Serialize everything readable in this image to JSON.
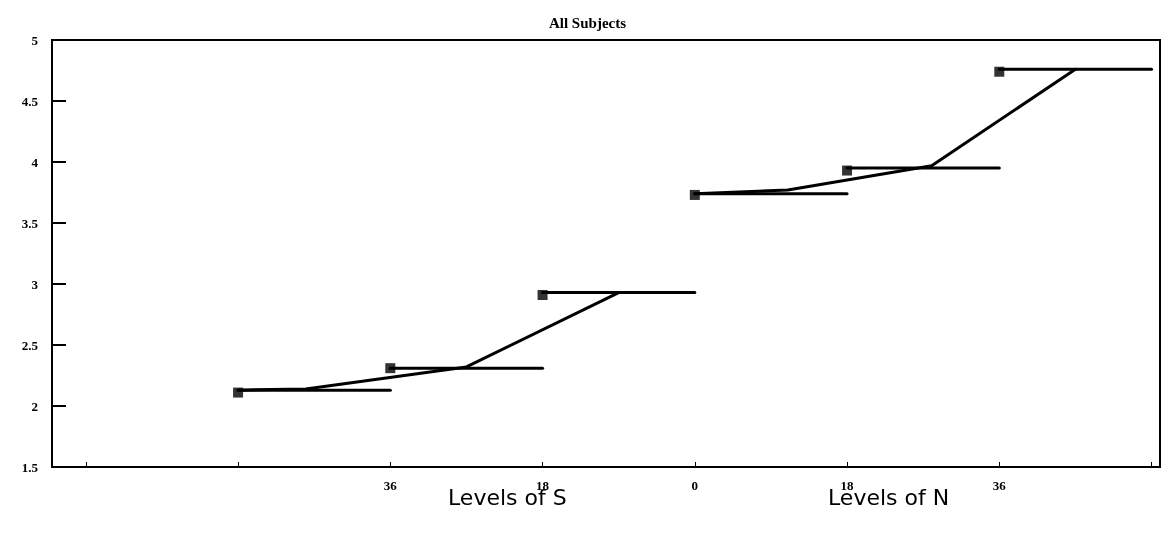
{
  "chart_data": {
    "type": "line",
    "title": "All Subjects",
    "xlabel": "Levels of S",
    "annotations": [
      "Levels of N"
    ],
    "xlim": [
      -76,
      55
    ],
    "xticks": [
      {
        "value": -72,
        "label": null
      },
      {
        "value": -54,
        "label": null
      },
      {
        "value": -36,
        "label": "36"
      },
      {
        "value": -18,
        "label": "18"
      },
      0,
      18,
      36,
      {
        "value": 54,
        "label": null
      }
    ],
    "ylim": [
      1.5,
      5
    ],
    "yticks": [
      1.5,
      2,
      2.5,
      3,
      3.5,
      4,
      4.5,
      5
    ],
    "grid": false,
    "marker": "none",
    "line_style": "solid",
    "series": [
      {
        "color": "#000000",
        "x": [
          -54,
          -36
        ],
        "values": [
          2.13,
          2.13
        ]
      },
      {
        "color": "#000000",
        "x": [
          -36,
          -18
        ],
        "values": [
          2.31,
          2.31
        ]
      },
      {
        "color": "#000000",
        "x": [
          -18,
          0
        ],
        "values": [
          2.93,
          2.93
        ]
      },
      {
        "color": "#000000",
        "x": [
          0,
          18
        ],
        "values": [
          3.74,
          3.74
        ]
      },
      {
        "color": "#000000",
        "x": [
          18,
          36
        ],
        "values": [
          3.95,
          3.95
        ]
      },
      {
        "color": "#000000",
        "x": [
          36,
          54
        ],
        "values": [
          4.76,
          4.76
        ]
      },
      {
        "color": "#000000",
        "x": [
          -54,
          -46,
          -27,
          -9
        ],
        "values": [
          2.13,
          2.14,
          2.32,
          2.93
        ]
      },
      {
        "color": "#000000",
        "x": [
          0,
          11,
          28,
          45
        ],
        "values": [
          3.74,
          3.77,
          3.97,
          4.76
        ]
      },
      {
        "type": "scatter",
        "marker": "square",
        "color": "#000000",
        "x": [
          -54,
          -36,
          -18,
          0,
          18,
          36
        ],
        "values": [
          2.11,
          2.31,
          2.91,
          3.73,
          3.93,
          4.74
        ]
      }
    ]
  }
}
